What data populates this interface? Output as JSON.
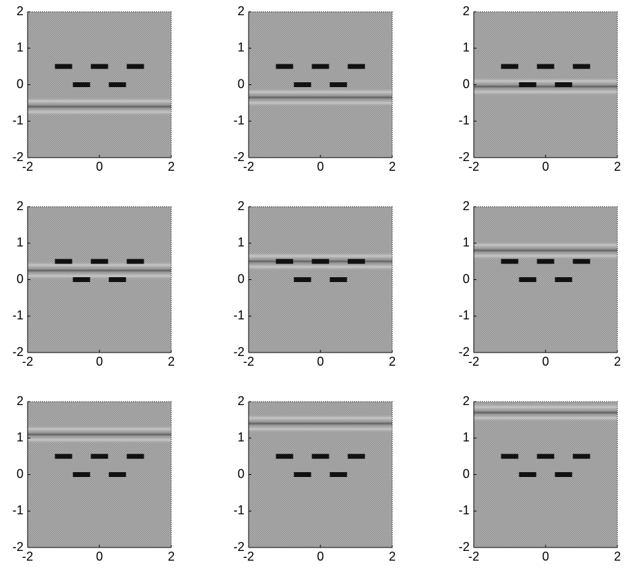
{
  "chart_data": [
    {
      "type": "wavefield",
      "wave_y": -0.6,
      "xlim": [
        -2,
        2
      ],
      "ylim": [
        -2,
        2
      ],
      "xticks": [
        -2,
        0,
        2
      ],
      "yticks": [
        -2,
        -1,
        0,
        1,
        2
      ],
      "obstacles": {
        "x": [
          -1,
          0,
          1,
          -0.5,
          0.5
        ],
        "y": [
          0.5,
          0.5,
          0.5,
          0,
          0
        ]
      }
    },
    {
      "type": "wavefield",
      "wave_y": -0.35,
      "xlim": [
        -2,
        2
      ],
      "ylim": [
        -2,
        2
      ],
      "xticks": [
        -2,
        0,
        2
      ],
      "yticks": [
        -2,
        -1,
        0,
        1,
        2
      ],
      "obstacles": {
        "x": [
          -1,
          0,
          1,
          -0.5,
          0.5
        ],
        "y": [
          0.5,
          0.5,
          0.5,
          0,
          0
        ]
      }
    },
    {
      "type": "wavefield",
      "wave_y": -0.05,
      "xlim": [
        -2,
        2
      ],
      "ylim": [
        -2,
        2
      ],
      "xticks": [
        -2,
        0,
        2
      ],
      "yticks": [
        -2,
        -1,
        0,
        1,
        2
      ],
      "obstacles": {
        "x": [
          -1,
          0,
          1,
          -0.5,
          0.5
        ],
        "y": [
          0.5,
          0.5,
          0.5,
          0,
          0
        ]
      }
    },
    {
      "type": "wavefield",
      "wave_y": 0.25,
      "xlim": [
        -2,
        2
      ],
      "ylim": [
        -2,
        2
      ],
      "xticks": [
        -2,
        0,
        2
      ],
      "yticks": [
        -2,
        -1,
        0,
        1,
        2
      ],
      "obstacles": {
        "x": [
          -1,
          0,
          1,
          -0.5,
          0.5
        ],
        "y": [
          0.5,
          0.5,
          0.5,
          0,
          0
        ]
      }
    },
    {
      "type": "wavefield",
      "wave_y": 0.5,
      "xlim": [
        -2,
        2
      ],
      "ylim": [
        -2,
        2
      ],
      "xticks": [
        -2,
        0,
        2
      ],
      "yticks": [
        -2,
        -1,
        0,
        1,
        2
      ],
      "obstacles": {
        "x": [
          -1,
          0,
          1,
          -0.5,
          0.5
        ],
        "y": [
          0.5,
          0.5,
          0.5,
          0,
          0
        ]
      }
    },
    {
      "type": "wavefield",
      "wave_y": 0.8,
      "xlim": [
        -2,
        2
      ],
      "ylim": [
        -2,
        2
      ],
      "xticks": [
        -2,
        0,
        2
      ],
      "yticks": [
        -2,
        -1,
        0,
        1,
        2
      ],
      "obstacles": {
        "x": [
          -1,
          0,
          1,
          -0.5,
          0.5
        ],
        "y": [
          0.5,
          0.5,
          0.5,
          0,
          0
        ]
      }
    },
    {
      "type": "wavefield",
      "wave_y": 1.1,
      "xlim": [
        -2,
        2
      ],
      "ylim": [
        -2,
        2
      ],
      "xticks": [
        -2,
        0,
        2
      ],
      "yticks": [
        -2,
        -1,
        0,
        1,
        2
      ],
      "obstacles": {
        "x": [
          -1,
          0,
          1,
          -0.5,
          0.5
        ],
        "y": [
          0.5,
          0.5,
          0.5,
          0,
          0
        ]
      }
    },
    {
      "type": "wavefield",
      "wave_y": 1.4,
      "xlim": [
        -2,
        2
      ],
      "ylim": [
        -2,
        2
      ],
      "xticks": [
        -2,
        0,
        2
      ],
      "yticks": [
        -2,
        -1,
        0,
        1,
        2
      ],
      "obstacles": {
        "x": [
          -1,
          0,
          1,
          -0.5,
          0.5
        ],
        "y": [
          0.5,
          0.5,
          0.5,
          0,
          0
        ]
      }
    },
    {
      "type": "wavefield",
      "wave_y": 1.7,
      "xlim": [
        -2,
        2
      ],
      "ylim": [
        -2,
        2
      ],
      "xticks": [
        -2,
        0,
        2
      ],
      "yticks": [
        -2,
        -1,
        0,
        1,
        2
      ],
      "obstacles": {
        "x": [
          -1,
          0,
          1,
          -0.5,
          0.5
        ],
        "y": [
          0.5,
          0.5,
          0.5,
          0,
          0
        ]
      }
    }
  ]
}
